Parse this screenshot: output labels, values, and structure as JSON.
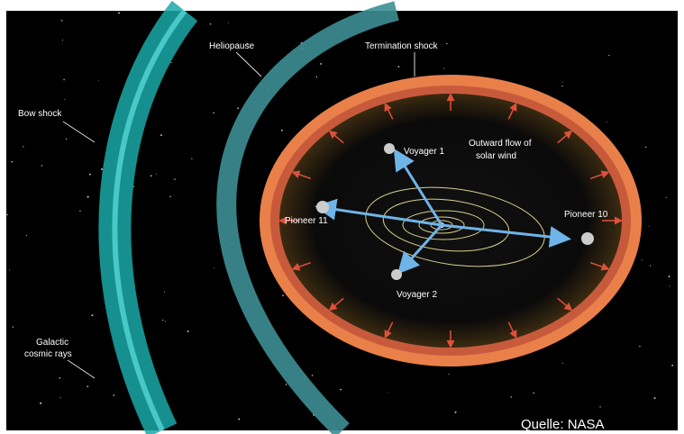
{
  "labels": {
    "bow_shock": "Bow shock",
    "heliopause": "Heliopause",
    "termination_shock": "Termination shock",
    "solar_wind": [
      "Outward flow of",
      "solar wind"
    ],
    "voyager_1": "Voyager 1",
    "voyager_2": "Voyager 2",
    "pioneer_10": "Pioneer 10",
    "pioneer_11": "Pioneer 11",
    "cosmic_rays": [
      "Galactic",
      "cosmic rays"
    ]
  },
  "credit": "Quelle: NASA"
}
